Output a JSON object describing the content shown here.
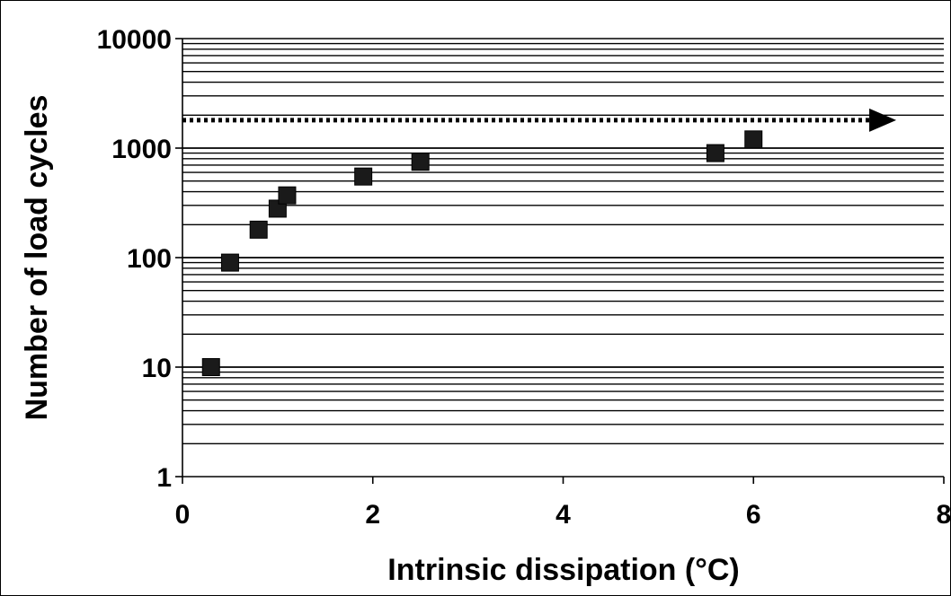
{
  "chart_data": {
    "type": "scatter",
    "title": "",
    "xlabel": "Intrinsic dissipation (°C)",
    "ylabel": "Number of load cycles",
    "xlim": [
      0,
      8
    ],
    "ylim": [
      1,
      10000
    ],
    "y_scale": "log",
    "x_ticks": [
      "0",
      "2",
      "4",
      "6",
      "8"
    ],
    "y_ticks": [
      "1",
      "10",
      "100",
      "1000",
      "10000"
    ],
    "grid": "horizontal minor and major lines",
    "marker": "square",
    "marker_color": "#1a1a1a",
    "series": [
      {
        "x": [
          0.3,
          0.5,
          0.8,
          1.0,
          1.1,
          1.9,
          2.5,
          5.6,
          6.0
        ],
        "y": [
          10,
          90,
          180,
          280,
          370,
          550,
          750,
          900,
          1200
        ]
      }
    ],
    "reference_line": {
      "style": "dotted-arrow",
      "y": 1800,
      "x_start": 0,
      "x_end": 7.5
    }
  }
}
